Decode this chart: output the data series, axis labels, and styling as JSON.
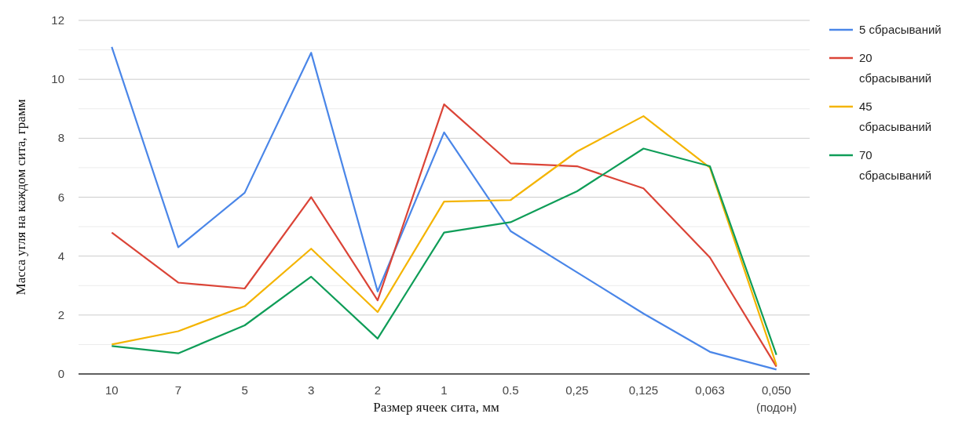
{
  "chart_data": {
    "type": "line",
    "xlabel": "Размер ячеек сита, мм",
    "ylabel": "Масса угля на каждом сита, грамм",
    "categories": [
      "10",
      "7",
      "5",
      "3",
      "2",
      "1",
      "0.5",
      "0,25",
      "0,125",
      "0,063",
      "0,050 (подон)"
    ],
    "ylim": [
      0,
      12
    ],
    "yticks": [
      0,
      {
        "value": 1,
        "label": null
      },
      2,
      {
        "value": 3,
        "label": null
      },
      4,
      {
        "value": 5,
        "label": null
      },
      6,
      {
        "value": 7,
        "label": null
      },
      8,
      {
        "value": 9,
        "label": null
      },
      10,
      {
        "value": 11,
        "label": null
      },
      12
    ],
    "grid": "y",
    "legend": "right",
    "line_style": "solid",
    "marker": "none",
    "series": [
      {
        "name": "5 сбрасываний",
        "color": "#4a86e8",
        "values": [
          11.1,
          4.3,
          6.15,
          10.9,
          2.8,
          8.2,
          4.85,
          3.45,
          2.05,
          0.75,
          0.15
        ]
      },
      {
        "name": "20 сбрасываний",
        "color": "#db4437",
        "values": [
          4.8,
          3.1,
          2.9,
          6.0,
          2.5,
          9.15,
          7.15,
          7.05,
          6.3,
          3.95,
          0.25
        ]
      },
      {
        "name": "45 сбрасываний",
        "color": "#f4b400",
        "values": [
          1.0,
          1.45,
          2.3,
          4.25,
          2.1,
          5.85,
          5.9,
          7.55,
          8.75,
          7.0,
          0.3
        ]
      },
      {
        "name": "70 сбрасываний",
        "color": "#0f9d58",
        "values": [
          0.95,
          0.7,
          1.65,
          3.3,
          1.2,
          4.8,
          5.15,
          6.2,
          7.65,
          7.05,
          0.65
        ]
      }
    ]
  }
}
